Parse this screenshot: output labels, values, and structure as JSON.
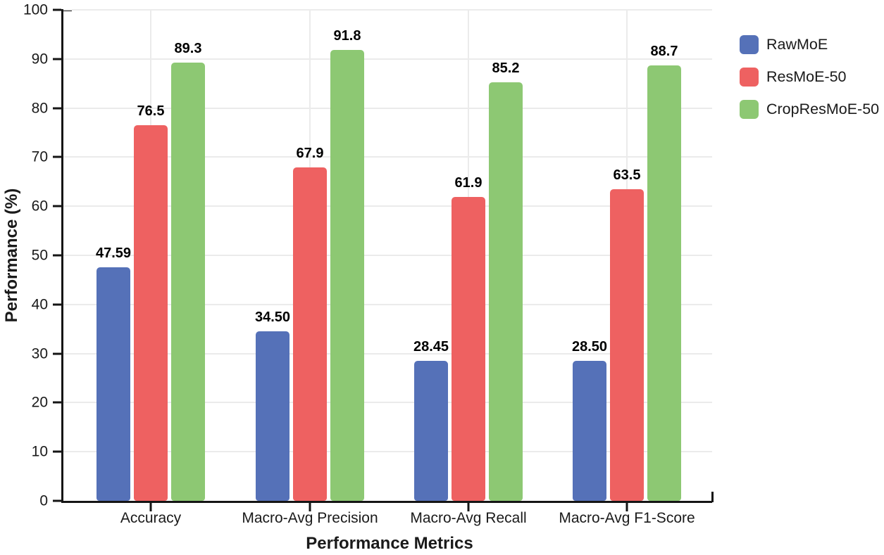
{
  "chart_data": {
    "type": "bar",
    "categories": [
      "Accuracy",
      "Macro-Avg Precision",
      "Macro-Avg Recall",
      "Macro-Avg F1-Score"
    ],
    "series": [
      {
        "name": "RawMoE",
        "color": "#5571b8",
        "values": [
          47.59,
          34.5,
          28.45,
          28.5
        ],
        "value_labels": [
          "47.59",
          "34.50",
          "28.45",
          "28.50"
        ]
      },
      {
        "name": "ResMoE-50",
        "color": "#ee6161",
        "values": [
          76.5,
          67.9,
          61.9,
          63.5
        ],
        "value_labels": [
          "76.5",
          "67.9",
          "61.9",
          "63.5"
        ]
      },
      {
        "name": "CropResMoE-50",
        "color": "#8dc873",
        "values": [
          89.3,
          91.8,
          85.2,
          88.7
        ],
        "value_labels": [
          "89.3",
          "91.8",
          "85.2",
          "88.7"
        ]
      }
    ],
    "xlabel": "Performance Metrics",
    "ylabel": "Performance (%)",
    "ylim": [
      0,
      100
    ],
    "yticks": [
      0,
      10,
      20,
      30,
      40,
      50,
      60,
      70,
      80,
      90,
      100
    ],
    "ytick_labels": [
      "0",
      "10",
      "20",
      "30",
      "40",
      "50",
      "60",
      "70",
      "80",
      "90",
      "100"
    ],
    "grid": true,
    "legend_position": "top-right"
  },
  "colors": {
    "background": "#ffffff",
    "axis": "#151515",
    "grid": "#ebebeb",
    "text": "#1a1a1a"
  }
}
